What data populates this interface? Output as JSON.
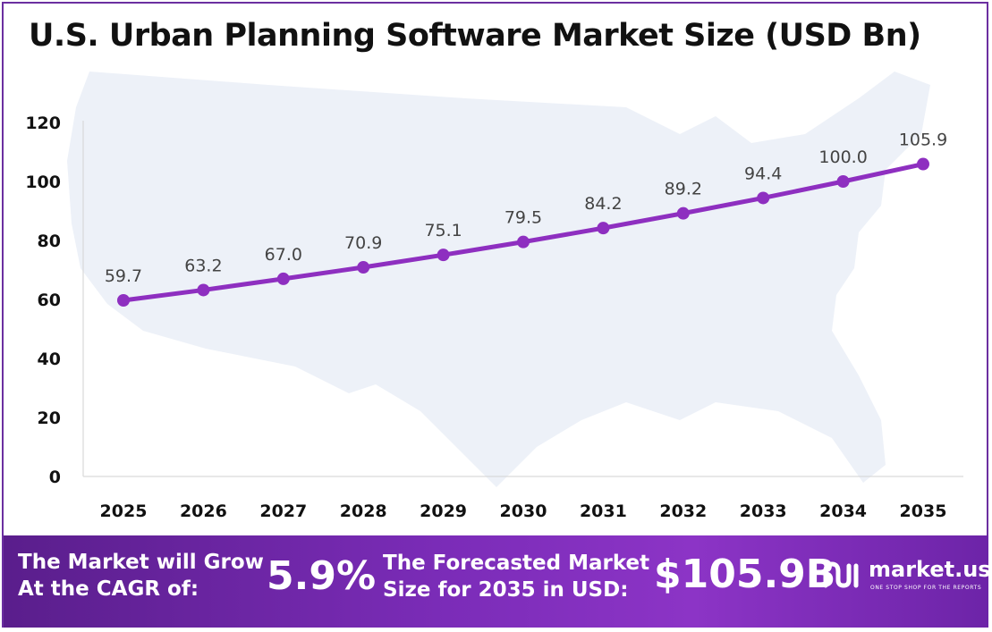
{
  "title": "U.S. Urban Planning Software Market Size (USD Bn)",
  "colors": {
    "line": "#8e2fc0",
    "marker": "#8e2fc0",
    "map": "#edf1f8",
    "axis": "#d9d9d9",
    "footer_start": "#5a1e8c",
    "footer_end": "#8c34c6"
  },
  "chart_data": {
    "type": "line",
    "categories": [
      "2025",
      "2026",
      "2027",
      "2028",
      "2029",
      "2030",
      "2031",
      "2032",
      "2033",
      "2034",
      "2035"
    ],
    "values": [
      59.7,
      63.2,
      67.0,
      70.9,
      75.1,
      79.5,
      84.2,
      89.2,
      94.4,
      100.0,
      105.9
    ],
    "value_labels": [
      "59.7",
      "63.2",
      "67.0",
      "70.9",
      "75.1",
      "79.5",
      "84.2",
      "89.2",
      "94.4",
      "100.0",
      "105.9"
    ],
    "yticks": [
      0,
      20,
      40,
      60,
      80,
      100,
      120
    ],
    "ylim": [
      0,
      120
    ],
    "grid": false,
    "legend": "none",
    "title": "U.S. Urban Planning Software Market Size (USD Bn)",
    "xlabel": "",
    "ylabel": ""
  },
  "footer": {
    "cagr_label_line1": "The Market will Grow",
    "cagr_label_line2": "At the CAGR of:",
    "cagr_value": "5.9%",
    "forecast_label_line1": "The Forecasted Market",
    "forecast_label_line2": "Size for 2035 in USD:",
    "forecast_value": "$105.9B",
    "brand_name": "market.us",
    "brand_tagline": "ONE STOP SHOP FOR THE REPORTS",
    "brand_icon": "market-us-logo-icon"
  }
}
